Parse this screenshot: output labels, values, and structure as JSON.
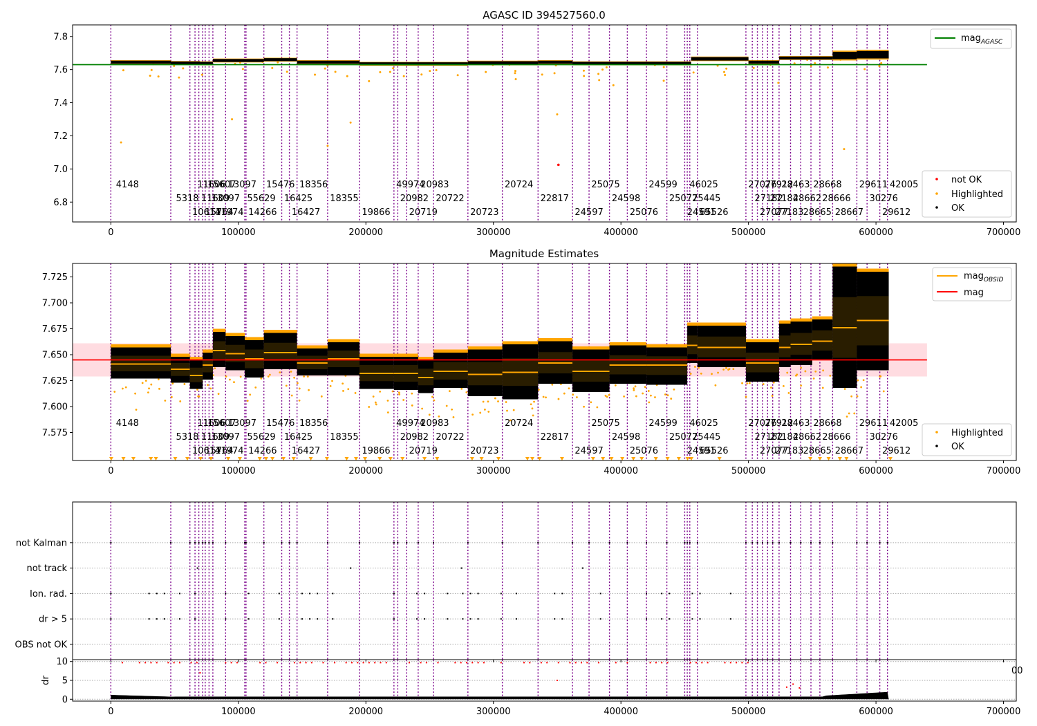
{
  "chart_data": [
    {
      "type": "scatter",
      "title": "AGASC ID 394527560.0",
      "xlim": [
        -30000,
        710000
      ],
      "ylim": [
        6.68,
        7.87
      ],
      "x_ticks": [
        0,
        100000,
        200000,
        300000,
        400000,
        500000,
        600000,
        700000
      ],
      "x_tick_labels": [
        "0",
        "100000",
        "200000",
        "300000",
        "400000",
        "500000",
        "600000",
        "700000"
      ],
      "y_ticks": [
        6.8,
        7.0,
        7.2,
        7.4,
        7.6,
        7.8
      ],
      "y_tick_labels": [
        "6.8",
        "7.0",
        "7.2",
        "7.4",
        "7.6",
        "7.8"
      ],
      "legend": {
        "upper_right": [
          {
            "label": "mag",
            "sub": "AGASC",
            "color": "#008000",
            "kind": "line"
          }
        ],
        "lower_right": [
          {
            "label": "not OK",
            "color": "#ff0000",
            "kind": "dot"
          },
          {
            "label": "Highlighted",
            "color": "#ffa500",
            "kind": "dot"
          },
          {
            "label": "OK",
            "color": "#000000",
            "kind": "dot"
          }
        ]
      },
      "mag_agasc": {
        "value": 7.63,
        "x_range": [
          -30000,
          640000
        ],
        "color": "#008000"
      },
      "ok_segments": [
        {
          "x0": 0,
          "x1": 47000,
          "y": 7.645,
          "spread": 0.012
        },
        {
          "x0": 47000,
          "x1": 70000,
          "y": 7.64,
          "spread": 0.012
        },
        {
          "x0": 70000,
          "x1": 80000,
          "y": 7.638,
          "spread": 0.012
        },
        {
          "x0": 80000,
          "x1": 120000,
          "y": 7.655,
          "spread": 0.012
        },
        {
          "x0": 120000,
          "x1": 146000,
          "y": 7.66,
          "spread": 0.012
        },
        {
          "x0": 146000,
          "x1": 195000,
          "y": 7.645,
          "spread": 0.012
        },
        {
          "x0": 195000,
          "x1": 280000,
          "y": 7.635,
          "spread": 0.012
        },
        {
          "x0": 280000,
          "x1": 335000,
          "y": 7.64,
          "spread": 0.014
        },
        {
          "x0": 335000,
          "x1": 362000,
          "y": 7.645,
          "spread": 0.012
        },
        {
          "x0": 362000,
          "x1": 455000,
          "y": 7.638,
          "spread": 0.012
        },
        {
          "x0": 455000,
          "x1": 500000,
          "y": 7.665,
          "spread": 0.014
        },
        {
          "x0": 500000,
          "x1": 524000,
          "y": 7.645,
          "spread": 0.012
        },
        {
          "x0": 524000,
          "x1": 566000,
          "y": 7.67,
          "spread": 0.012
        },
        {
          "x0": 566000,
          "x1": 585000,
          "y": 7.685,
          "spread": 0.03
        },
        {
          "x0": 585000,
          "x1": 610000,
          "y": 7.69,
          "spread": 0.03
        }
      ],
      "not_ok_points": [
        {
          "x": 351000,
          "y": 7.025
        }
      ]
    },
    {
      "type": "scatter",
      "title": "Magnitude Estimates",
      "xlim": [
        -30000,
        710000
      ],
      "ylim": [
        7.548,
        7.738
      ],
      "x_ticks": [
        0,
        100000,
        200000,
        300000,
        400000,
        500000,
        600000,
        700000
      ],
      "x_tick_labels": [
        "0",
        "100000",
        "200000",
        "300000",
        "400000",
        "500000",
        "600000",
        "700000"
      ],
      "y_ticks": [
        7.575,
        7.6,
        7.625,
        7.65,
        7.675,
        7.7,
        7.725
      ],
      "y_tick_labels": [
        "7.575",
        "7.600",
        "7.625",
        "7.650",
        "7.675",
        "7.700",
        "7.725"
      ],
      "legend": {
        "upper_right": [
          {
            "label": "mag",
            "sub": "OBSID",
            "color": "#ffa500",
            "kind": "line"
          },
          {
            "label": "mag",
            "sub": "",
            "color": "#ff0000",
            "kind": "line"
          }
        ],
        "lower_right": [
          {
            "label": "Highlighted",
            "color": "#ffa500",
            "kind": "dot"
          },
          {
            "label": "OK",
            "color": "#000000",
            "kind": "dot"
          }
        ]
      },
      "mag": {
        "value": 7.645,
        "band": [
          7.629,
          7.661
        ],
        "x_range": [
          -30000,
          640000
        ],
        "color": "#ff0000"
      },
      "obsid_segments": [
        {
          "x0": 0,
          "x1": 47000,
          "mag": 7.641,
          "lo": 7.627,
          "hi": 7.657
        },
        {
          "x0": 47000,
          "x1": 62000,
          "mag": 7.636,
          "lo": 7.623,
          "hi": 7.648
        },
        {
          "x0": 62000,
          "x1": 72000,
          "mag": 7.63,
          "lo": 7.617,
          "hi": 7.645
        },
        {
          "x0": 72000,
          "x1": 80000,
          "mag": 7.64,
          "lo": 7.626,
          "hi": 7.652
        },
        {
          "x0": 80000,
          "x1": 90000,
          "mag": 7.654,
          "lo": 7.638,
          "hi": 7.672
        },
        {
          "x0": 90000,
          "x1": 105000,
          "mag": 7.651,
          "lo": 7.635,
          "hi": 7.668
        },
        {
          "x0": 105000,
          "x1": 120000,
          "mag": 7.646,
          "lo": 7.628,
          "hi": 7.664
        },
        {
          "x0": 120000,
          "x1": 146000,
          "mag": 7.652,
          "lo": 7.636,
          "hi": 7.671
        },
        {
          "x0": 146000,
          "x1": 170000,
          "mag": 7.642,
          "lo": 7.63,
          "hi": 7.656
        },
        {
          "x0": 170000,
          "x1": 195000,
          "mag": 7.646,
          "lo": 7.63,
          "hi": 7.662
        },
        {
          "x0": 195000,
          "x1": 222000,
          "mag": 7.632,
          "lo": 7.617,
          "hi": 7.648
        },
        {
          "x0": 222000,
          "x1": 241000,
          "mag": 7.632,
          "lo": 7.616,
          "hi": 7.648
        },
        {
          "x0": 241000,
          "x1": 253000,
          "mag": 7.628,
          "lo": 7.613,
          "hi": 7.645
        },
        {
          "x0": 253000,
          "x1": 280000,
          "mag": 7.634,
          "lo": 7.618,
          "hi": 7.652
        },
        {
          "x0": 280000,
          "x1": 307000,
          "mag": 7.631,
          "lo": 7.61,
          "hi": 7.655
        },
        {
          "x0": 307000,
          "x1": 335000,
          "mag": 7.633,
          "lo": 7.607,
          "hi": 7.66
        },
        {
          "x0": 335000,
          "x1": 362000,
          "mag": 7.642,
          "lo": 7.622,
          "hi": 7.663
        },
        {
          "x0": 362000,
          "x1": 391000,
          "mag": 7.634,
          "lo": 7.614,
          "hi": 7.655
        },
        {
          "x0": 391000,
          "x1": 420000,
          "mag": 7.64,
          "lo": 7.622,
          "hi": 7.659
        },
        {
          "x0": 420000,
          "x1": 452000,
          "mag": 7.64,
          "lo": 7.621,
          "hi": 7.657
        },
        {
          "x0": 452000,
          "x1": 460000,
          "mag": 7.659,
          "lo": 7.642,
          "hi": 7.678
        },
        {
          "x0": 460000,
          "x1": 498000,
          "mag": 7.657,
          "lo": 7.638,
          "hi": 7.678
        },
        {
          "x0": 498000,
          "x1": 524000,
          "mag": 7.642,
          "lo": 7.624,
          "hi": 7.662
        },
        {
          "x0": 524000,
          "x1": 533000,
          "mag": 7.657,
          "lo": 7.638,
          "hi": 7.68
        },
        {
          "x0": 533000,
          "x1": 550000,
          "mag": 7.66,
          "lo": 7.64,
          "hi": 7.682
        },
        {
          "x0": 550000,
          "x1": 566000,
          "mag": 7.663,
          "lo": 7.645,
          "hi": 7.684
        },
        {
          "x0": 566000,
          "x1": 585000,
          "mag": 7.676,
          "lo": 7.618,
          "hi": 7.735
        },
        {
          "x0": 585000,
          "x1": 610000,
          "mag": 7.683,
          "lo": 7.635,
          "hi": 7.73
        }
      ]
    },
    {
      "type": "scatter",
      "title": "",
      "xlim": [
        -30000,
        710000
      ],
      "ylim_flags": [
        -0.6,
        5.6
      ],
      "ylim_dr": [
        -0.5,
        10.5
      ],
      "flag_categories": [
        "OBS not OK",
        "dr > 5",
        "Ion. rad.",
        "not track",
        "not Kalman"
      ],
      "dr_ticks": [
        0,
        5,
        10
      ],
      "dr_tick_labels": [
        "0",
        "5",
        "10"
      ],
      "dr_axis_label": "dr",
      "x_ticks": [
        0,
        100000,
        200000,
        300000,
        400000,
        500000,
        600000,
        700000
      ],
      "x_tick_labels": [
        "0",
        "100000",
        "200000",
        "300000",
        "400000",
        "500000",
        "600000",
        "700000"
      ],
      "stray_tick_label": "00"
    }
  ],
  "obsids": [
    {
      "x": 0,
      "label": "4148"
    },
    {
      "x": 47000,
      "label": "5318"
    },
    {
      "x": 62000,
      "label": "10614"
    },
    {
      "x": 66000,
      "label": "11606"
    },
    {
      "x": 69000,
      "label": "11609"
    },
    {
      "x": 72000,
      "label": "15764"
    },
    {
      "x": 74000,
      "label": "15607"
    },
    {
      "x": 77000,
      "label": "13097"
    },
    {
      "x": 80000,
      "label": "11974"
    },
    {
      "x": 90000,
      "label": "13097"
    },
    {
      "x": 105000,
      "label": "55629"
    },
    {
      "x": 106000,
      "label": "14266"
    },
    {
      "x": 120000,
      "label": "15476"
    },
    {
      "x": 134000,
      "label": "16425"
    },
    {
      "x": 140000,
      "label": "16427"
    },
    {
      "x": 146000,
      "label": "18356"
    },
    {
      "x": 170000,
      "label": "18355"
    },
    {
      "x": 195000,
      "label": "19866"
    },
    {
      "x": 222000,
      "label": "49974"
    },
    {
      "x": 225000,
      "label": "20982"
    },
    {
      "x": 232000,
      "label": "20719"
    },
    {
      "x": 241000,
      "label": "20983"
    },
    {
      "x": 253000,
      "label": "20722"
    },
    {
      "x": 280000,
      "label": "20723"
    },
    {
      "x": 307000,
      "label": "20724"
    },
    {
      "x": 335000,
      "label": "22817"
    },
    {
      "x": 362000,
      "label": "24597"
    },
    {
      "x": 375000,
      "label": "25075"
    },
    {
      "x": 391000,
      "label": "24598"
    },
    {
      "x": 405000,
      "label": "25076"
    },
    {
      "x": 420000,
      "label": "24599"
    },
    {
      "x": 436000,
      "label": "25077"
    },
    {
      "x": 450000,
      "label": "24591"
    },
    {
      "x": 452000,
      "label": "46025"
    },
    {
      "x": 454000,
      "label": "25445"
    },
    {
      "x": 460000,
      "label": "65526"
    },
    {
      "x": 498000,
      "label": "27076"
    },
    {
      "x": 503000,
      "label": "27182"
    },
    {
      "x": 507000,
      "label": "27077"
    },
    {
      "x": 511000,
      "label": "27912"
    },
    {
      "x": 515000,
      "label": "27184"
    },
    {
      "x": 519000,
      "label": "27183"
    },
    {
      "x": 524000,
      "label": "28463"
    },
    {
      "x": 533000,
      "label": "28662"
    },
    {
      "x": 541000,
      "label": "28665"
    },
    {
      "x": 549000,
      "label": "28668"
    },
    {
      "x": 556000,
      "label": "28666"
    },
    {
      "x": 566000,
      "label": "28667"
    },
    {
      "x": 585000,
      "label": "29611"
    },
    {
      "x": 593000,
      "label": "30276"
    },
    {
      "x": 603000,
      "label": "29612"
    },
    {
      "x": 609000,
      "label": "42005"
    }
  ]
}
